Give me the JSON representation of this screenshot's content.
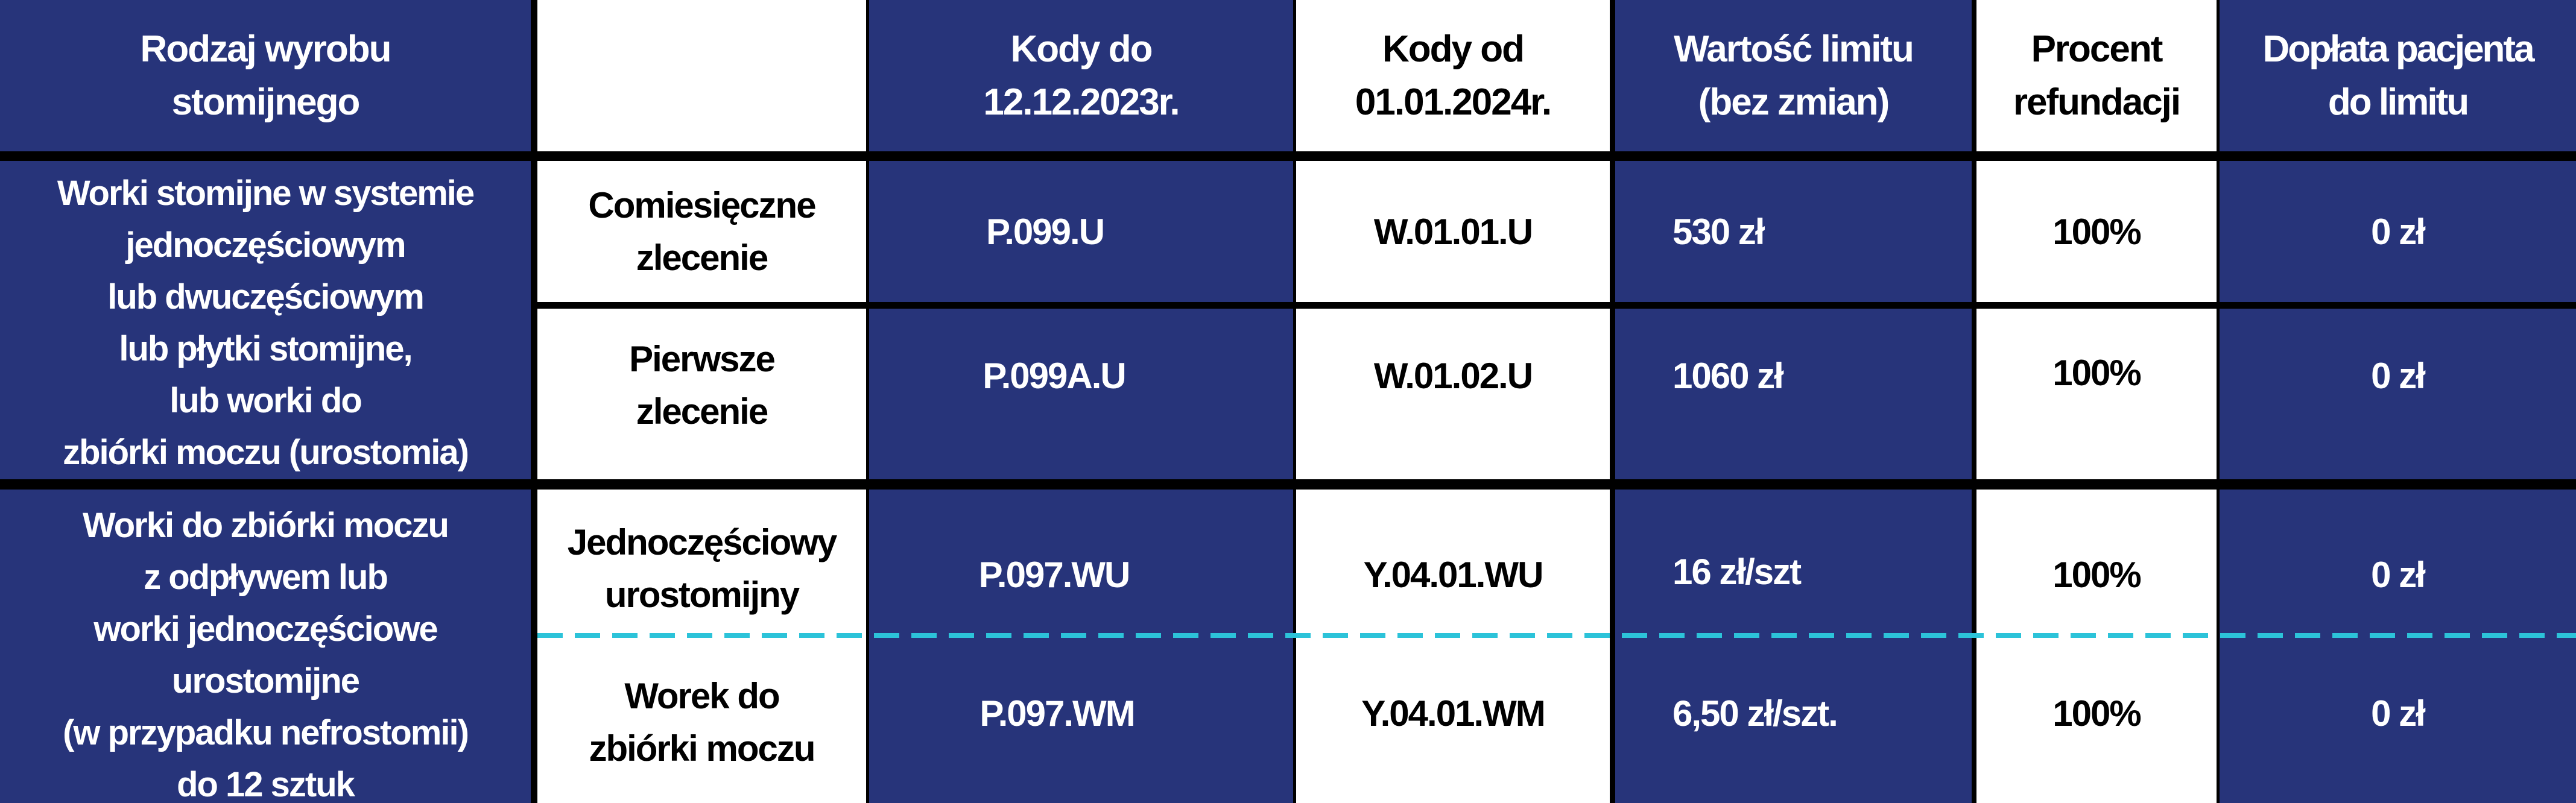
{
  "header": {
    "col1": "Rodzaj wyrobu\nstomijnego",
    "col2": "",
    "col3": "Kody do\n12.12.2023r.",
    "col4": "Kody od\n01.01.2024r.",
    "col5": "Wartość limitu\n(bez zmian)",
    "col6": "Procent\nrefundacji",
    "col7": "Dopłata pacjenta\ndo limitu"
  },
  "groups": [
    {
      "category": "Worki stomijne w systemie\njednoczęściowym\nlub dwuczęściowym\nlub płytki stomijne,\nlub worki do\nzbiórki moczu (urostomia)"
    },
    {
      "category": "Worki do zbiórki moczu\nz odpływem lub\nworki jednoczęściowe\nurostomijne\n(w przypadku nefrostomii)\ndo 12 sztuk"
    }
  ],
  "rows": [
    {
      "type": "Comiesięczne\nzlecenie",
      "old_code": "P.099.U",
      "new_code": "W.01.01.U",
      "limit": "530 zł",
      "refund": "100%",
      "copay": "0 zł"
    },
    {
      "type": "Pierwsze\nzlecenie",
      "old_code": "P.099A.U",
      "new_code": "W.01.02.U",
      "limit": "1060 zł",
      "refund": "100%",
      "copay": "0 zł"
    },
    {
      "type": "Jednoczęściowy\nurostomijny",
      "old_code": "P.097.WU",
      "new_code": "Y.04.01.WU",
      "limit": "16 zł/szt",
      "refund": "100%",
      "copay": "0 zł"
    },
    {
      "type": "Worek do\nzbiórki moczu",
      "old_code": "P.097.WM",
      "new_code": "Y.04.01.WM",
      "limit": "6,50 zł/szt.",
      "refund": "100%",
      "copay": "0 zł"
    }
  ],
  "colors": {
    "blue": "#27347a",
    "divider": "#000000",
    "dashed_divider": "#2cc3d9"
  }
}
